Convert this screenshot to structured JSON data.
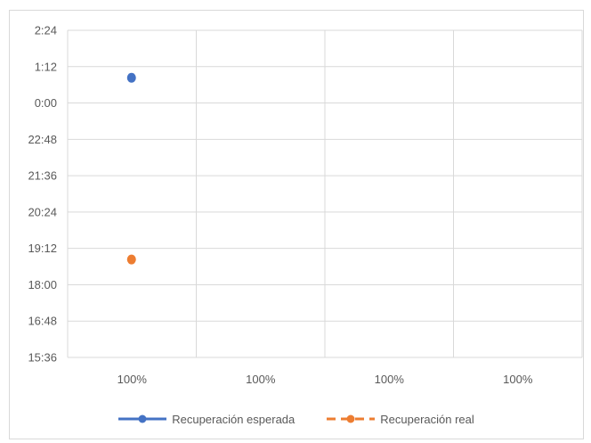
{
  "chart_data": {
    "type": "line",
    "y_axis": {
      "kind": "time",
      "ticks": [
        "2:24",
        "1:12",
        "0:00",
        "22:48",
        "21:36",
        "20:24",
        "19:12",
        "18:00",
        "16:48",
        "15:36"
      ],
      "range": [
        "15:36",
        "2:24 (+1 day)"
      ]
    },
    "categories": [
      "100%",
      "100%",
      "100%",
      "100%"
    ],
    "series": [
      {
        "name": "Recuperación esperada",
        "color": "#4472c4",
        "line_style": "solid",
        "points": [
          {
            "category_index": 0,
            "y": "0:50"
          }
        ]
      },
      {
        "name": "Recuperación real",
        "color": "#ed7d31",
        "line_style": "dashed",
        "points": [
          {
            "category_index": 0,
            "y": "18:50"
          }
        ]
      }
    ],
    "grid": true,
    "legend_position": "bottom"
  }
}
